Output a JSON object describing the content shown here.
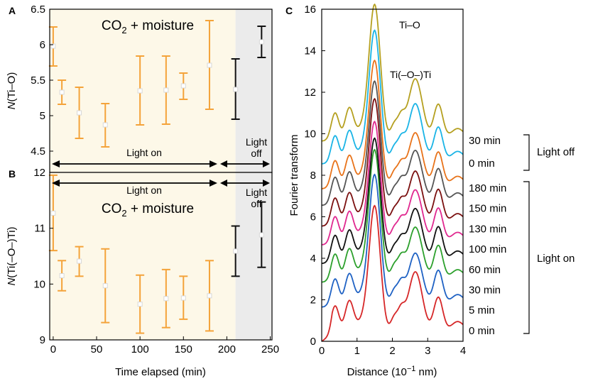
{
  "chart_data": [
    {
      "panel": "A",
      "type": "scatter",
      "ylabel_italic": "N",
      "ylabel_rest": "(Ti–O)",
      "ylim": [
        4.2,
        6.5
      ],
      "yticks": [
        "4.5",
        "5",
        "5.5",
        "6",
        "6.5"
      ],
      "ytick_values": [
        4.5,
        5,
        5.5,
        6,
        6.5
      ],
      "xlim": [
        -4,
        252
      ],
      "shaded_regions": [
        {
          "from": -4,
          "to": 210,
          "color": "#fdf8e8"
        },
        {
          "from": 210,
          "to": 252,
          "color": "#ebebeb"
        }
      ],
      "series": [
        {
          "name": "Light on",
          "color": "#f4a33a",
          "points": [
            {
              "x": 0,
              "y": 5.98,
              "lo": 5.7,
              "hi": 6.25
            },
            {
              "x": 10,
              "y": 5.33,
              "lo": 5.16,
              "hi": 5.5
            },
            {
              "x": 30,
              "y": 5.04,
              "lo": 4.68,
              "hi": 5.4
            },
            {
              "x": 60,
              "y": 4.87,
              "lo": 4.56,
              "hi": 5.17
            },
            {
              "x": 100,
              "y": 5.35,
              "lo": 4.87,
              "hi": 5.84
            },
            {
              "x": 130,
              "y": 5.36,
              "lo": 4.88,
              "hi": 5.84
            },
            {
              "x": 150,
              "y": 5.42,
              "lo": 5.23,
              "hi": 5.6
            },
            {
              "x": 180,
              "y": 5.71,
              "lo": 5.09,
              "hi": 6.34
            }
          ]
        },
        {
          "name": "Light off",
          "color": "#111111",
          "points": [
            {
              "x": 210,
              "y": 5.37,
              "lo": 4.95,
              "hi": 5.8
            },
            {
              "x": 240,
              "y": 6.04,
              "lo": 5.82,
              "hi": 6.26
            }
          ]
        }
      ],
      "annotations": {
        "title_main": "CO",
        "title_sub": "2",
        "title_rest": " + moisture",
        "light_on": "Light on",
        "light_off_line1": "Light",
        "light_off_line2": "off"
      }
    },
    {
      "panel": "B",
      "type": "scatter",
      "ylabel_italic": "N",
      "ylabel_rest": "(Ti(–O–)Ti)",
      "ylim": [
        9,
        12
      ],
      "yticks": [
        "9",
        "10",
        "11",
        "12"
      ],
      "ytick_values": [
        9,
        10,
        11,
        12
      ],
      "xlabel": "Time elapsed (min)",
      "xticks": [
        "0",
        "50",
        "100",
        "150",
        "200",
        "250"
      ],
      "xtick_values": [
        0,
        50,
        100,
        150,
        200,
        250
      ],
      "xlim": [
        -4,
        252
      ],
      "shaded_regions": [
        {
          "from": -4,
          "to": 210,
          "color": "#fdf8e8"
        },
        {
          "from": 210,
          "to": 252,
          "color": "#ebebeb"
        }
      ],
      "series": [
        {
          "name": "Light on",
          "color": "#f4a33a",
          "points": [
            {
              "x": 0,
              "y": 11.27,
              "lo": 10.6,
              "hi": 11.95
            },
            {
              "x": 10,
              "y": 10.15,
              "lo": 9.88,
              "hi": 10.42
            },
            {
              "x": 30,
              "y": 10.41,
              "lo": 10.14,
              "hi": 10.67
            },
            {
              "x": 60,
              "y": 9.97,
              "lo": 9.31,
              "hi": 10.63
            },
            {
              "x": 100,
              "y": 9.64,
              "lo": 9.12,
              "hi": 10.16
            },
            {
              "x": 130,
              "y": 9.74,
              "lo": 9.22,
              "hi": 10.26
            },
            {
              "x": 150,
              "y": 9.75,
              "lo": 9.37,
              "hi": 10.14
            },
            {
              "x": 180,
              "y": 9.79,
              "lo": 9.16,
              "hi": 10.42
            }
          ]
        },
        {
          "name": "Light off",
          "color": "#111111",
          "points": [
            {
              "x": 210,
              "y": 10.59,
              "lo": 10.14,
              "hi": 11.04
            },
            {
              "x": 240,
              "y": 10.88,
              "lo": 10.3,
              "hi": 11.47
            }
          ]
        }
      ],
      "annotations": {
        "title_main": "CO",
        "title_sub": "2",
        "title_rest": " + moisture",
        "light_on": "Light on",
        "light_off_line1": "Light",
        "light_off_line2": "off"
      }
    },
    {
      "panel": "C",
      "type": "line",
      "ylabel": "Fourier transform",
      "xlabel_main": "Distance (10",
      "xlabel_sup": "−1",
      "xlabel_rest": " nm)",
      "xlim": [
        0,
        4
      ],
      "ylim": [
        0,
        16
      ],
      "xticks": [
        "0",
        "1",
        "2",
        "3",
        "4"
      ],
      "xtick_values": [
        0,
        1,
        2,
        3,
        4
      ],
      "yticks": [
        "0",
        "2",
        "4",
        "6",
        "8",
        "10",
        "12",
        "14",
        "16"
      ],
      "ytick_values": [
        0,
        2,
        4,
        6,
        8,
        10,
        12,
        14,
        16
      ],
      "peak_labels": [
        "Ti–O",
        "Ti(–O–)Ti"
      ],
      "series": [
        {
          "name": "0 min",
          "color": "#d62728",
          "offset": 0.0,
          "main_peak": 6.1,
          "second_peak": 3.0
        },
        {
          "name": "5 min",
          "color": "#1f62c4",
          "offset": 1.3,
          "main_peak": 6.3,
          "second_peak": 2.6
        },
        {
          "name": "30 min",
          "color": "#2ca02c",
          "offset": 2.5,
          "main_peak": 6.3,
          "second_peak": 2.65
        },
        {
          "name": "60 min",
          "color": "#111111",
          "offset": 3.4,
          "main_peak": 5.95,
          "second_peak": 2.65
        },
        {
          "name": "100 min",
          "color": "#e0288f",
          "offset": 4.3,
          "main_peak": 5.85,
          "second_peak": 2.65
        },
        {
          "name": "130 min",
          "color": "#7b1010",
          "offset": 5.2,
          "main_peak": 6.05,
          "second_peak": 2.65
        },
        {
          "name": "150 min",
          "color": "#555555",
          "offset": 6.2,
          "main_peak": 5.9,
          "second_peak": 2.65
        },
        {
          "name": "180 min",
          "color": "#e8731a",
          "offset": 7.0,
          "main_peak": 6.1,
          "second_peak": 2.7
        },
        {
          "name": "0 min",
          "color": "#1ab4e6",
          "offset": 8.2,
          "main_peak": 6.35,
          "second_peak": 2.9
        },
        {
          "name": "30 min",
          "color": "#b5a020",
          "offset": 9.3,
          "main_peak": 6.5,
          "second_peak": 3.0
        }
      ],
      "time_labels": {
        "light_off": [
          "30 min",
          "0 min"
        ],
        "light_on": [
          "180 min",
          "150 min",
          "130 min",
          "100 min",
          "60 min",
          "30 min",
          "5 min",
          "0 min"
        ]
      },
      "group_labels": {
        "light_off": "Light off",
        "light_on": "Light on"
      }
    }
  ]
}
